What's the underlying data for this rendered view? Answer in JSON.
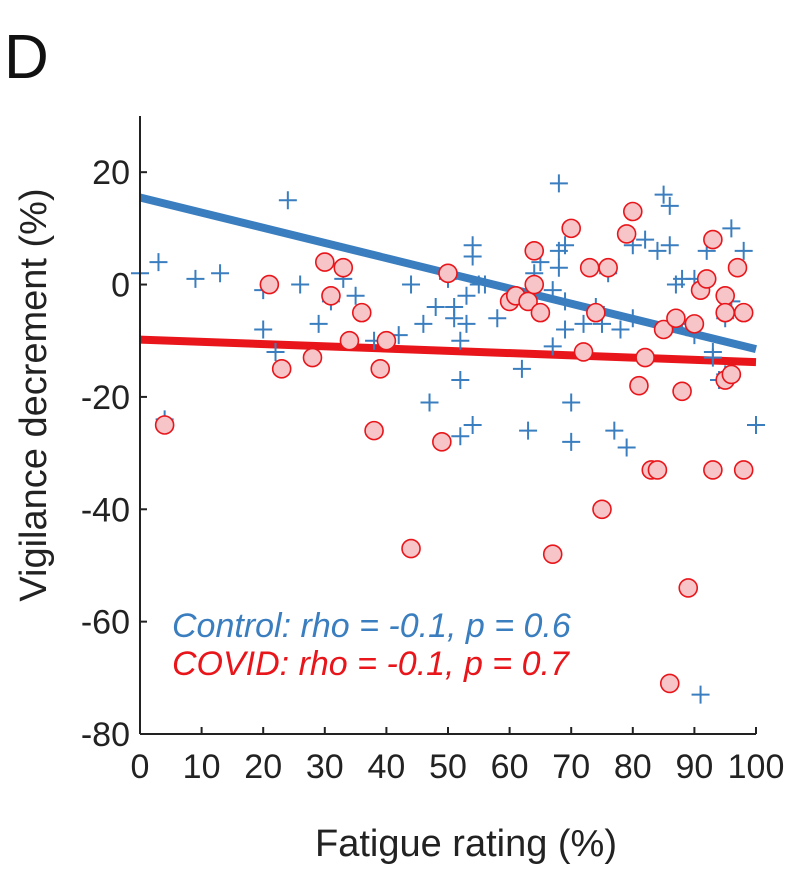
{
  "panel_label": "D",
  "colors": {
    "control": "#3a7ebf",
    "covid": "#e8161b",
    "covid_fill": "#f7c4c7",
    "axis": "#222222"
  },
  "chart_data": {
    "type": "scatter",
    "xlabel": "Fatigue rating (%)",
    "ylabel": "Vigilance decrement (%)",
    "xlim": [
      0,
      100
    ],
    "ylim": [
      -80,
      30
    ],
    "xticks": [
      0,
      10,
      20,
      30,
      40,
      50,
      60,
      70,
      80,
      90,
      100
    ],
    "yticks": [
      20,
      0,
      -20,
      -40,
      -60,
      -80
    ],
    "grid": false,
    "annotations": [
      {
        "series": "control",
        "text": "Control: rho = -0.1, p = 0.6"
      },
      {
        "series": "covid",
        "text": "COVID: rho = -0.1, p = 0.7"
      }
    ],
    "series": [
      {
        "key": "control",
        "marker": "plus",
        "points": [
          [
            0,
            2
          ],
          [
            3,
            4
          ],
          [
            4,
            -24
          ],
          [
            9,
            1
          ],
          [
            13,
            2
          ],
          [
            20,
            -1
          ],
          [
            20,
            -8
          ],
          [
            22,
            -12
          ],
          [
            24,
            15
          ],
          [
            26,
            0
          ],
          [
            29,
            -7
          ],
          [
            31,
            -3
          ],
          [
            33,
            1
          ],
          [
            35,
            -2
          ],
          [
            38,
            -10
          ],
          [
            42,
            -9
          ],
          [
            44,
            0
          ],
          [
            46,
            -7
          ],
          [
            47,
            -21
          ],
          [
            48,
            -4
          ],
          [
            49,
            -28
          ],
          [
            50,
            1
          ],
          [
            51,
            -4
          ],
          [
            51,
            -6
          ],
          [
            52,
            -17
          ],
          [
            52,
            -10
          ],
          [
            52,
            -27
          ],
          [
            53,
            -7
          ],
          [
            53,
            -2
          ],
          [
            54,
            7
          ],
          [
            54,
            5
          ],
          [
            54,
            -25
          ],
          [
            55,
            0
          ],
          [
            56,
            0
          ],
          [
            58,
            -6
          ],
          [
            62,
            -15
          ],
          [
            63,
            -26
          ],
          [
            64,
            2
          ],
          [
            65,
            4
          ],
          [
            67,
            -1
          ],
          [
            67,
            -11
          ],
          [
            68,
            18
          ],
          [
            68,
            6
          ],
          [
            68,
            3
          ],
          [
            69,
            7
          ],
          [
            69,
            -3
          ],
          [
            69,
            -8
          ],
          [
            70,
            -21
          ],
          [
            70,
            -28
          ],
          [
            72,
            -7
          ],
          [
            74,
            -4
          ],
          [
            75,
            -7
          ],
          [
            76,
            2
          ],
          [
            77,
            -26
          ],
          [
            78,
            -8
          ],
          [
            79,
            -29
          ],
          [
            80,
            -6
          ],
          [
            80,
            7
          ],
          [
            82,
            8
          ],
          [
            84,
            6
          ],
          [
            85,
            16
          ],
          [
            86,
            14
          ],
          [
            86,
            7
          ],
          [
            87,
            0
          ],
          [
            88,
            1
          ],
          [
            88,
            -7
          ],
          [
            90,
            1
          ],
          [
            90,
            -9
          ],
          [
            91,
            -73
          ],
          [
            92,
            6
          ],
          [
            93,
            -13
          ],
          [
            93,
            -12
          ],
          [
            94,
            -17
          ],
          [
            95,
            -16
          ],
          [
            95,
            -6
          ],
          [
            96,
            10
          ],
          [
            96,
            -3
          ],
          [
            98,
            6
          ],
          [
            100,
            -25
          ]
        ]
      },
      {
        "key": "covid",
        "marker": "circle",
        "points": [
          [
            4,
            -25
          ],
          [
            21,
            0
          ],
          [
            23,
            -15
          ],
          [
            28,
            -13
          ],
          [
            30,
            4
          ],
          [
            31,
            -2
          ],
          [
            33,
            3
          ],
          [
            34,
            -10
          ],
          [
            36,
            -5
          ],
          [
            38,
            -26
          ],
          [
            39,
            -15
          ],
          [
            40,
            -10
          ],
          [
            44,
            -47
          ],
          [
            49,
            -28
          ],
          [
            50,
            2
          ],
          [
            60,
            -3
          ],
          [
            61,
            -2
          ],
          [
            63,
            -3
          ],
          [
            64,
            0
          ],
          [
            64,
            6
          ],
          [
            65,
            -5
          ],
          [
            67,
            -48
          ],
          [
            70,
            10
          ],
          [
            72,
            -12
          ],
          [
            73,
            3
          ],
          [
            74,
            -5
          ],
          [
            75,
            -40
          ],
          [
            76,
            3
          ],
          [
            79,
            9
          ],
          [
            80,
            13
          ],
          [
            81,
            -18
          ],
          [
            82,
            -13
          ],
          [
            83,
            -33
          ],
          [
            84,
            -33
          ],
          [
            85,
            -8
          ],
          [
            86,
            -71
          ],
          [
            87,
            -6
          ],
          [
            88,
            -19
          ],
          [
            89,
            -54
          ],
          [
            90,
            -7
          ],
          [
            91,
            -1
          ],
          [
            92,
            1
          ],
          [
            93,
            -33
          ],
          [
            93,
            8
          ],
          [
            95,
            -2
          ],
          [
            95,
            -5
          ],
          [
            95,
            -17
          ],
          [
            96,
            -16
          ],
          [
            97,
            3
          ],
          [
            98,
            -5
          ],
          [
            98,
            -33
          ]
        ]
      }
    ],
    "fit_lines": [
      {
        "series": "control",
        "x": [
          0,
          100
        ],
        "y": [
          15.5,
          -11.5
        ]
      },
      {
        "series": "covid",
        "x": [
          0,
          100
        ],
        "y": [
          -9.8,
          -13.8
        ]
      }
    ]
  }
}
